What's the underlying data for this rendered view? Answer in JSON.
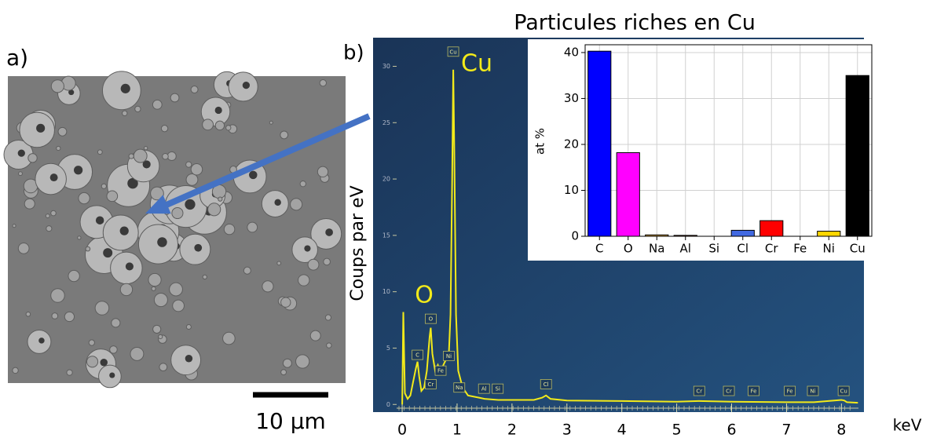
{
  "panel_labels": [
    "a)",
    "b)"
  ],
  "scale_bar": "10 µm",
  "chart_data": [
    {
      "type": "line",
      "xlabel": "keV",
      "ylabel": "Coups par eV",
      "annotations": [
        "O",
        "Cu"
      ],
      "x": [
        0,
        0.02,
        0.05,
        0.1,
        0.15,
        0.2,
        0.25,
        0.28,
        0.31,
        0.35,
        0.4,
        0.45,
        0.5,
        0.52,
        0.55,
        0.6,
        0.65,
        0.7,
        0.75,
        0.8,
        0.85,
        0.88,
        0.91,
        0.93,
        0.95,
        0.98,
        1.02,
        1.1,
        1.2,
        1.4,
        1.5,
        1.75,
        2.0,
        2.4,
        2.55,
        2.62,
        2.7,
        3.0,
        4.0,
        5.0,
        5.4,
        6.0,
        7.0,
        7.5,
        8.0,
        8.05,
        8.1,
        8.3
      ],
      "values": [
        0,
        8.2,
        1.0,
        0.5,
        0.8,
        2.0,
        3.2,
        3.8,
        2.5,
        1.2,
        1.5,
        3.0,
        6.0,
        6.8,
        4.5,
        3.0,
        3.5,
        2.8,
        3.5,
        4.0,
        4.5,
        8.0,
        20.0,
        29.7,
        22.0,
        8.0,
        3.0,
        1.5,
        0.8,
        0.6,
        0.5,
        0.4,
        0.4,
        0.4,
        0.6,
        0.8,
        0.5,
        0.35,
        0.3,
        0.25,
        0.3,
        0.25,
        0.2,
        0.2,
        0.4,
        0.35,
        0.2,
        0.15
      ],
      "color": "#f2ea1a",
      "peak_labels": [
        {
          "label": "Cu",
          "x": 0.93,
          "y": 31.3
        },
        {
          "label": "C",
          "x": 0.28,
          "y": 4.4
        },
        {
          "label": "O",
          "x": 0.52,
          "y": 7.6
        },
        {
          "label": "Ni",
          "x": 0.85,
          "y": 4.3
        },
        {
          "label": "Fe",
          "x": 0.7,
          "y": 3.0
        },
        {
          "label": "Cr",
          "x": 0.52,
          "y": 1.8
        },
        {
          "label": "Na",
          "x": 1.04,
          "y": 1.5
        },
        {
          "label": "Al",
          "x": 1.49,
          "y": 1.4
        },
        {
          "label": "Si",
          "x": 1.74,
          "y": 1.4
        },
        {
          "label": "Cl",
          "x": 2.62,
          "y": 1.8
        },
        {
          "label": "Cr",
          "x": 5.41,
          "y": 1.2
        },
        {
          "label": "Cr",
          "x": 5.95,
          "y": 1.2
        },
        {
          "label": "Fe",
          "x": 6.4,
          "y": 1.2
        },
        {
          "label": "Fe",
          "x": 7.06,
          "y": 1.2
        },
        {
          "label": "Ni",
          "x": 7.48,
          "y": 1.2
        },
        {
          "label": "Cu",
          "x": 8.04,
          "y": 1.2
        }
      ],
      "xlim": [
        -0.53,
        8.41
      ],
      "ylim": [
        -0.4,
        32.4
      ],
      "xticks": [
        0,
        1,
        2,
        3,
        4,
        5,
        6,
        7,
        8
      ],
      "yticks": [
        0,
        5,
        10,
        15,
        20,
        25,
        30
      ]
    },
    {
      "type": "bar",
      "title": "Particules riches en Cu",
      "ylabel": "at %",
      "categories": [
        "C",
        "O",
        "Na",
        "Al",
        "Si",
        "Cl",
        "Cr",
        "Fe",
        "Ni",
        "Cu"
      ],
      "values": [
        40.3,
        18.2,
        0.3,
        0.2,
        0,
        1.3,
        3.4,
        0,
        1.1,
        35.0
      ],
      "colors": [
        "#0000ff",
        "#ff00ff",
        "#d2a03c",
        "#a0522d",
        "#808080",
        "#4169e1",
        "#ff0000",
        "#808080",
        "#ffd700",
        "#000000"
      ],
      "ylim": [
        0,
        41.7
      ],
      "yticks": [
        0,
        10,
        20,
        30,
        40
      ],
      "grid": true
    }
  ]
}
